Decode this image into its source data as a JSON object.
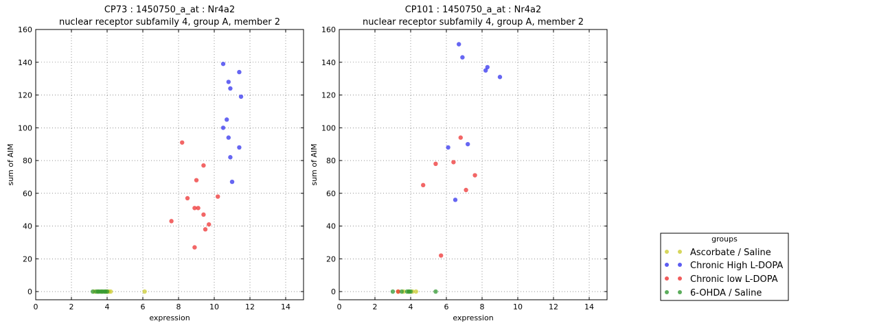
{
  "chart_data": [
    {
      "type": "scatter",
      "title": "CP73 : 1450750_a_at : Nr4a2",
      "subtitle": "nuclear receptor subfamily 4, group A, member 2",
      "xlabel": "expression",
      "ylabel": "sum of AIM",
      "xlim": [
        0,
        15
      ],
      "ylim": [
        -5,
        160
      ],
      "xticks": [
        0,
        2,
        4,
        6,
        8,
        10,
        12,
        14
      ],
      "yticks": [
        0,
        20,
        40,
        60,
        80,
        100,
        120,
        140,
        160
      ],
      "grid": true,
      "series": [
        {
          "name": "Ascorbate / Saline",
          "color": "#cccc33",
          "x": [
            3.3,
            3.5,
            3.7,
            3.9,
            4.0,
            4.1,
            4.2,
            6.1
          ],
          "y": [
            0,
            0,
            0,
            0,
            0,
            0,
            0,
            0
          ]
        },
        {
          "name": "Chronic High L-DOPA",
          "color": "#3333ee",
          "x": [
            10.5,
            11.4,
            10.8,
            10.9,
            11.5,
            10.7,
            10.5,
            10.8,
            11.4,
            10.9,
            11.0
          ],
          "y": [
            139,
            134,
            128,
            124,
            119,
            105,
            100,
            94,
            88,
            82,
            67
          ]
        },
        {
          "name": "Chronic low L-DOPA",
          "color": "#ee3333",
          "x": [
            8.2,
            9.4,
            9.0,
            8.5,
            8.9,
            9.1,
            10.2,
            9.4,
            7.6,
            9.7,
            9.5,
            8.9
          ],
          "y": [
            91,
            77,
            68,
            57,
            51,
            51,
            58,
            47,
            43,
            41,
            38,
            27
          ]
        },
        {
          "name": "6-OHDA / Saline",
          "color": "#339933",
          "x": [
            3.2,
            3.4,
            3.5,
            3.6,
            3.7,
            3.8,
            3.9,
            4.0
          ],
          "y": [
            0,
            0,
            0,
            0,
            0,
            0,
            0,
            0
          ]
        }
      ]
    },
    {
      "type": "scatter",
      "title": "CP101 : 1450750_a_at : Nr4a2",
      "subtitle": "nuclear receptor subfamily 4, group A, member 2",
      "xlabel": "expression",
      "ylabel": "sum of AIM",
      "xlim": [
        0,
        15
      ],
      "ylim": [
        -5,
        160
      ],
      "xticks": [
        0,
        2,
        4,
        6,
        8,
        10,
        12,
        14
      ],
      "yticks": [
        0,
        20,
        40,
        60,
        80,
        100,
        120,
        140,
        160
      ],
      "grid": true,
      "series": [
        {
          "name": "Ascorbate / Saline",
          "color": "#cccc33",
          "x": [
            3.3,
            3.6,
            3.9,
            4.1,
            4.3
          ],
          "y": [
            0,
            0,
            0,
            0,
            0
          ]
        },
        {
          "name": "Chronic High L-DOPA",
          "color": "#3333ee",
          "x": [
            6.7,
            6.9,
            8.3,
            8.2,
            9.0,
            6.1,
            7.2,
            6.5
          ],
          "y": [
            151,
            143,
            137,
            135,
            131,
            88,
            90,
            56
          ]
        },
        {
          "name": "Chronic low L-DOPA",
          "color": "#ee3333",
          "x": [
            6.8,
            5.4,
            6.4,
            7.6,
            4.7,
            7.1,
            5.7,
            3.3
          ],
          "y": [
            94,
            78,
            79,
            71,
            65,
            62,
            22,
            0
          ]
        },
        {
          "name": "6-OHDA / Saline",
          "color": "#339933",
          "x": [
            3.0,
            3.5,
            3.8,
            3.9,
            4.0,
            5.4
          ],
          "y": [
            0,
            0,
            0,
            0,
            0,
            0
          ]
        }
      ]
    }
  ],
  "legend": {
    "title": "groups",
    "position": "bottom-right",
    "entries": [
      {
        "label": "Ascorbate / Saline",
        "color": "#cccc33"
      },
      {
        "label": "Chronic High L-DOPA",
        "color": "#3333ee"
      },
      {
        "label": "Chronic low L-DOPA",
        "color": "#ee3333"
      },
      {
        "label": "6-OHDA / Saline",
        "color": "#339933"
      }
    ]
  }
}
